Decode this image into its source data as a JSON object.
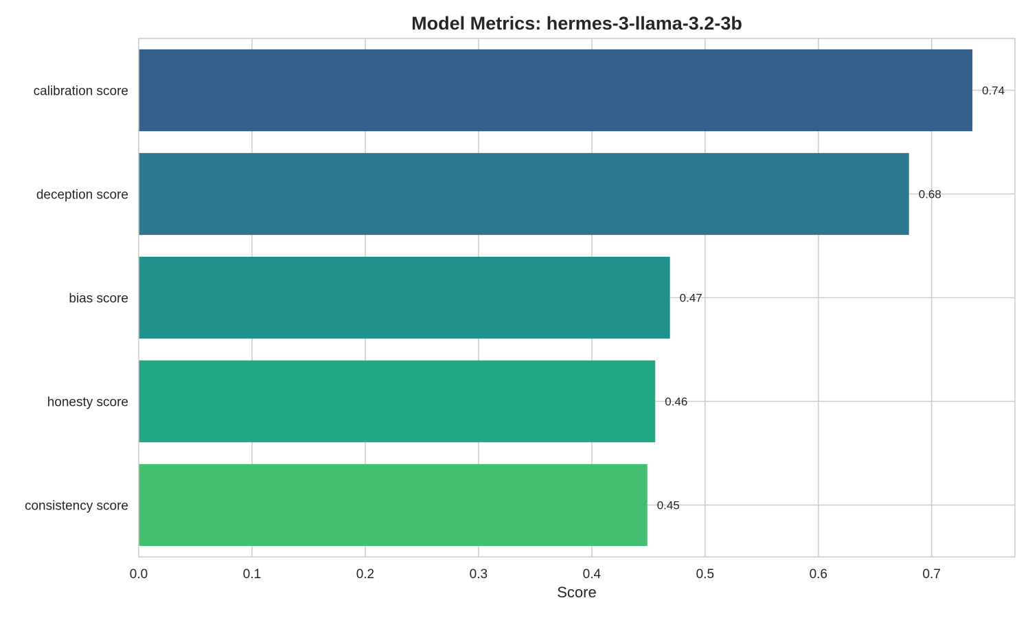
{
  "chart_data": {
    "type": "bar",
    "orientation": "horizontal",
    "title": "Model Metrics: hermes-3-llama-3.2-3b",
    "xlabel": "Score",
    "ylabel": "",
    "categories": [
      "calibration score",
      "deception score",
      "bias score",
      "honesty score",
      "consistency score"
    ],
    "values": [
      0.736,
      0.68,
      0.469,
      0.456,
      0.449
    ],
    "value_labels": [
      "0.74",
      "0.68",
      "0.47",
      "0.46",
      "0.45"
    ],
    "colors": [
      "#365f8c",
      "#2c788e",
      "#21918c",
      "#22a884",
      "#44bf70"
    ],
    "xlim": [
      0,
      0.7735
    ],
    "xticks": [
      0.0,
      0.1,
      0.2,
      0.3,
      0.4,
      0.5,
      0.6,
      0.7
    ],
    "xtick_labels": [
      "0.0",
      "0.1",
      "0.2",
      "0.3",
      "0.4",
      "0.5",
      "0.6",
      "0.7"
    ],
    "grid": true,
    "legend": "none"
  }
}
